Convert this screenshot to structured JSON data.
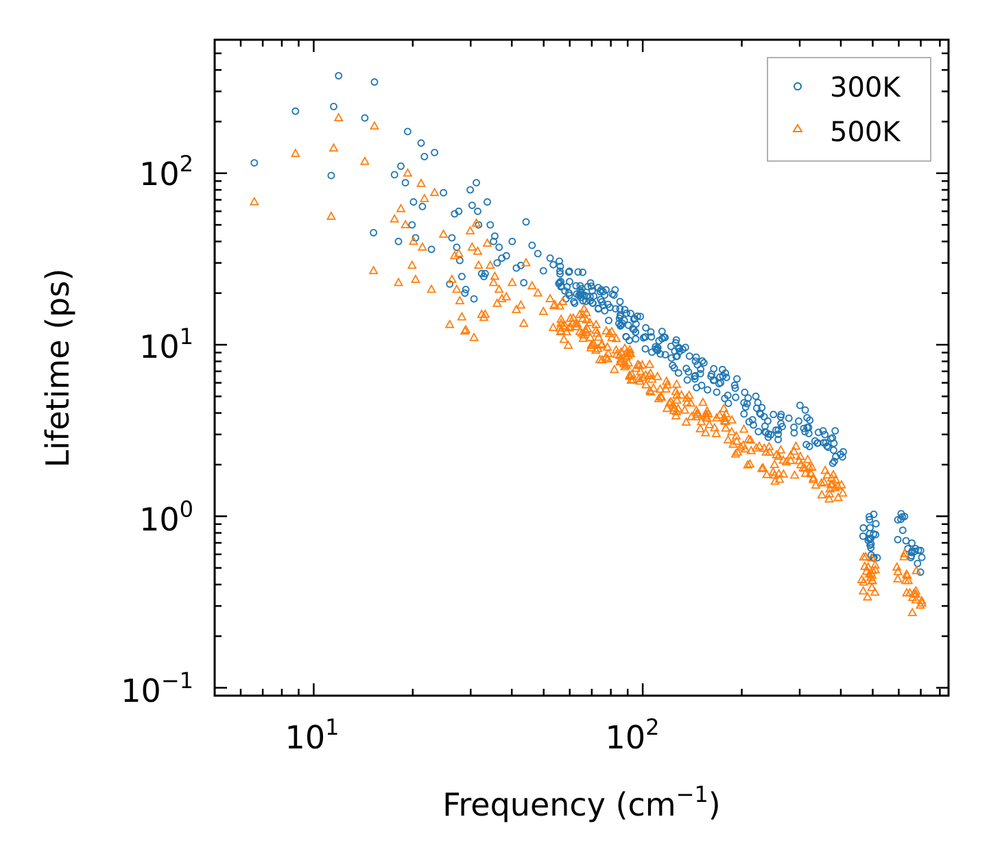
{
  "chart_data": {
    "type": "scatter",
    "title": "",
    "xscale": "log",
    "yscale": "log",
    "xlim": [
      5,
      850
    ],
    "ylim": [
      0.09,
      600
    ],
    "xlabel": {
      "main": "Frequency (cm",
      "sup": "−1",
      "tail": ")"
    },
    "ylabel": "Lifetime (ps)",
    "x_ticks": [
      {
        "base": "10",
        "exp": "1"
      },
      {
        "base": "10",
        "exp": "2"
      }
    ],
    "y_ticks": [
      {
        "base": "10",
        "exp": "−1"
      },
      {
        "base": "10",
        "exp": "0"
      },
      {
        "base": "10",
        "exp": "1"
      },
      {
        "base": "10",
        "exp": "2"
      }
    ],
    "legend_position": "top-right",
    "series": [
      {
        "name": "300K",
        "marker": "circle",
        "color": "#1f77b4",
        "points": [
          [
            6.6,
            115
          ],
          [
            8.8,
            230
          ],
          [
            11.3,
            97
          ],
          [
            11.5,
            245
          ],
          [
            11.9,
            370
          ],
          [
            14.3,
            210
          ],
          [
            15.2,
            45
          ],
          [
            15.3,
            340
          ],
          [
            17.6,
            98
          ],
          [
            18.1,
            40
          ],
          [
            18.4,
            110
          ],
          [
            19.0,
            88
          ],
          [
            19.3,
            175
          ],
          [
            19.9,
            50
          ],
          [
            20.1,
            68
          ],
          [
            20.4,
            42
          ],
          [
            21.2,
            150
          ],
          [
            21.4,
            64
          ],
          [
            21.7,
            125
          ],
          [
            22.8,
            36
          ],
          [
            23.3,
            132
          ],
          [
            24.8,
            77
          ],
          [
            25.9,
            22.6
          ],
          [
            26.3,
            42
          ],
          [
            26.8,
            58
          ],
          [
            27.2,
            37
          ],
          [
            27.6,
            60
          ],
          [
            27.8,
            31
          ],
          [
            28.2,
            25
          ],
          [
            28.8,
            20
          ],
          [
            29.0,
            21
          ],
          [
            29.9,
            80
          ],
          [
            30.3,
            65
          ],
          [
            30.7,
            18.5
          ],
          [
            31.2,
            88
          ],
          [
            31.5,
            60
          ],
          [
            31.7,
            50
          ],
          [
            32.4,
            26
          ],
          [
            32.9,
            25
          ],
          [
            33.2,
            26
          ],
          [
            33.7,
            68
          ],
          [
            34.4,
            50
          ],
          [
            35.2,
            40
          ],
          [
            35.5,
            43
          ],
          [
            36.1,
            30
          ],
          [
            36.6,
            37
          ],
          [
            37.3,
            32
          ],
          [
            38.5,
            33
          ],
          [
            40.1,
            40
          ],
          [
            41.3,
            28
          ],
          [
            42.6,
            29
          ],
          [
            43.5,
            23
          ],
          [
            44.2,
            52
          ],
          [
            46.1,
            38
          ],
          [
            48.0,
            34
          ],
          [
            49.9,
            27
          ],
          [
            52.3,
            32
          ],
          [
            55.1,
            25
          ],
          [
            57.6,
            23
          ],
          [
            60.3,
            20
          ],
          [
            63.4,
            23
          ],
          [
            66.2,
            22
          ],
          [
            69.5,
            19
          ],
          [
            72.4,
            17
          ],
          [
            76.1,
            18
          ],
          [
            80.2,
            17
          ],
          [
            84.1,
            15
          ],
          [
            88.0,
            14
          ],
          [
            92.3,
            13
          ],
          [
            97.6,
            12
          ],
          [
            104,
            11
          ],
          [
            110,
            10
          ],
          [
            118,
            9.2
          ],
          [
            124,
            8.7
          ],
          [
            132,
            8.0
          ],
          [
            141,
            7.4
          ],
          [
            150,
            6.8
          ],
          [
            160,
            6.4
          ],
          [
            172,
            6.0
          ],
          [
            185,
            5.6
          ],
          [
            200,
            4.6
          ],
          [
            218,
            4.1
          ],
          [
            232,
            3.7
          ],
          [
            250,
            3.3
          ],
          [
            270,
            3.5
          ],
          [
            300,
            3.7
          ],
          [
            320,
            3.1
          ],
          [
            345,
            2.7
          ],
          [
            370,
            2.6
          ],
          [
            390,
            2.5
          ],
          [
            480,
            0.8
          ],
          [
            490,
            0.9
          ],
          [
            500,
            0.7
          ],
          [
            620,
            0.85
          ],
          [
            650,
            0.7
          ],
          [
            680,
            0.55
          ]
        ]
      },
      {
        "name": "500K",
        "marker": "triangle",
        "color": "#ff7f0e",
        "points": [
          [
            6.6,
            68
          ],
          [
            8.8,
            130
          ],
          [
            11.3,
            56
          ],
          [
            11.5,
            140
          ],
          [
            11.9,
            210
          ],
          [
            14.3,
            117
          ],
          [
            15.2,
            27
          ],
          [
            15.3,
            188
          ],
          [
            17.6,
            54
          ],
          [
            18.1,
            23
          ],
          [
            18.4,
            62
          ],
          [
            19.0,
            50
          ],
          [
            19.3,
            100
          ],
          [
            19.9,
            29
          ],
          [
            20.1,
            40
          ],
          [
            20.4,
            24
          ],
          [
            21.2,
            87
          ],
          [
            21.4,
            37
          ],
          [
            21.7,
            71
          ],
          [
            22.8,
            21
          ],
          [
            23.3,
            77
          ],
          [
            24.8,
            44
          ],
          [
            25.9,
            13.1
          ],
          [
            26.3,
            24
          ],
          [
            26.8,
            33
          ],
          [
            27.2,
            21
          ],
          [
            27.6,
            34
          ],
          [
            27.8,
            18
          ],
          [
            28.2,
            14.5
          ],
          [
            28.8,
            12
          ],
          [
            29.0,
            12.2
          ],
          [
            29.9,
            46
          ],
          [
            30.3,
            37
          ],
          [
            30.7,
            11
          ],
          [
            31.2,
            51
          ],
          [
            31.5,
            35
          ],
          [
            31.7,
            29
          ],
          [
            32.4,
            15
          ],
          [
            32.9,
            14.4
          ],
          [
            33.2,
            15
          ],
          [
            33.7,
            39
          ],
          [
            34.4,
            29
          ],
          [
            35.2,
            23
          ],
          [
            35.5,
            25
          ],
          [
            36.1,
            17.4
          ],
          [
            36.6,
            21
          ],
          [
            37.3,
            18.5
          ],
          [
            38.5,
            19
          ],
          [
            40.1,
            23
          ],
          [
            41.3,
            16
          ],
          [
            42.6,
            17
          ],
          [
            43.5,
            13.3
          ],
          [
            44.2,
            30
          ],
          [
            46.1,
            22
          ],
          [
            48.0,
            20
          ],
          [
            49.9,
            15.6
          ],
          [
            52.3,
            18.5
          ],
          [
            55.1,
            14.5
          ],
          [
            57.6,
            13.3
          ],
          [
            60.3,
            11.6
          ],
          [
            63.4,
            13.3
          ],
          [
            66.2,
            12.7
          ],
          [
            69.5,
            11
          ],
          [
            72.4,
            9.8
          ],
          [
            76.1,
            10.4
          ],
          [
            80.2,
            9.8
          ],
          [
            84.1,
            8.7
          ],
          [
            88.0,
            8.1
          ],
          [
            92.3,
            7.5
          ],
          [
            97.6,
            7
          ],
          [
            104,
            6.4
          ],
          [
            110,
            5.8
          ],
          [
            118,
            5.3
          ],
          [
            124,
            5
          ],
          [
            132,
            4.6
          ],
          [
            141,
            4.3
          ],
          [
            150,
            3.9
          ],
          [
            160,
            3.7
          ],
          [
            172,
            3.5
          ],
          [
            185,
            3.2
          ],
          [
            200,
            2.7
          ],
          [
            218,
            2.4
          ],
          [
            232,
            2.1
          ],
          [
            250,
            1.9
          ],
          [
            270,
            2
          ],
          [
            300,
            2.1
          ],
          [
            320,
            1.8
          ],
          [
            345,
            1.6
          ],
          [
            370,
            1.5
          ],
          [
            390,
            1.45
          ],
          [
            480,
            0.45
          ],
          [
            490,
            0.5
          ],
          [
            500,
            0.4
          ],
          [
            620,
            0.5
          ],
          [
            650,
            0.4
          ],
          [
            680,
            0.32
          ]
        ]
      }
    ]
  }
}
